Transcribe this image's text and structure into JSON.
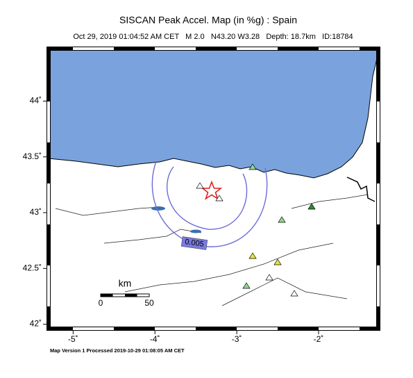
{
  "header": {
    "title": "SISCAN Peak Accel. Map (in %g) : Spain",
    "subtitle": "Oct 29, 2019 01:04:52 AM CET   M 2.0   N43.20 W3.28   Depth: 18.7km   ID:18784"
  },
  "map": {
    "xlim": [
      -5.3,
      -1.27
    ],
    "ylim": [
      41.96,
      44.47
    ],
    "xticks": [
      {
        "value": -5,
        "label": "-5˚"
      },
      {
        "value": -4,
        "label": "-4˚"
      },
      {
        "value": -3,
        "label": "-3˚"
      },
      {
        "value": -2,
        "label": "-2˚"
      }
    ],
    "yticks": [
      {
        "value": 42,
        "label": "42˚"
      },
      {
        "value": 42.5,
        "label": "42.5˚"
      },
      {
        "value": 43,
        "label": "43˚"
      },
      {
        "value": 43.5,
        "label": "43.5˚"
      },
      {
        "value": 44,
        "label": "44˚"
      }
    ],
    "contour_label": "0.005",
    "scale_bar": {
      "unit": "km",
      "labels": [
        "0",
        "50"
      ]
    }
  },
  "footer": "Map Version 1 Processed 2019-10-29 01:08:05 AM CET"
}
